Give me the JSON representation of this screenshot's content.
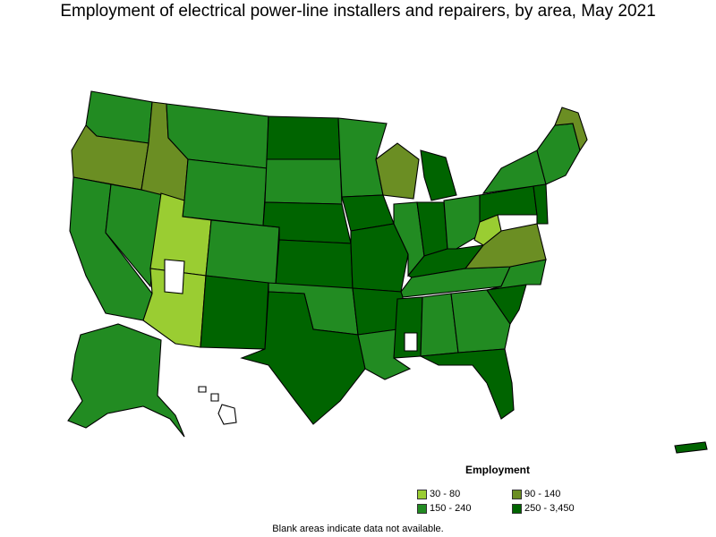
{
  "title": "Employment of electrical power-line installers and repairers, by area, May 2021",
  "legend": {
    "title": "Employment",
    "items": [
      {
        "label": "30 - 80",
        "color": "#9ACD32"
      },
      {
        "label": "90 - 140",
        "color": "#6B8E23"
      },
      {
        "label": "150 - 240",
        "color": "#228B22"
      },
      {
        "label": "250 - 3,450",
        "color": "#006400"
      }
    ]
  },
  "footnote": "Blank areas indicate data not available.",
  "colors": {
    "blank": "#FFFFFF",
    "border": "#000000"
  }
}
